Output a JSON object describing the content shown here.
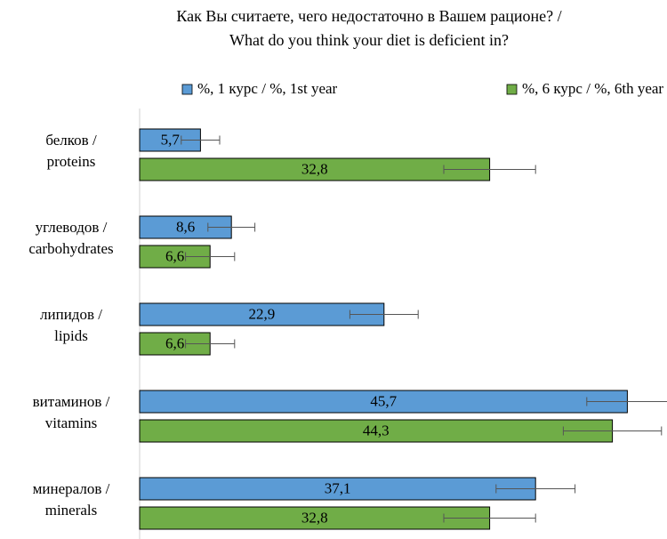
{
  "chart_data": {
    "type": "hbar",
    "title": "Как Вы считаете, чего недостаточно в Вашем рационе? /\nWhat do you think your diet is deficient in?",
    "categories": [
      "белков /\nproteins",
      "углеводов /\ncarbohydrates",
      "липидов /\nlipids",
      "витаминов /\nvitamins",
      "минералов /\nminerals"
    ],
    "series": [
      {
        "name": "%, 1 курс / %, 1st year",
        "color": "#5b9bd5",
        "values": [
          5.7,
          8.6,
          22.9,
          45.7,
          37.1
        ],
        "value_labels": [
          "5,7",
          "8,6",
          "22,9",
          "45,7",
          "37,1"
        ],
        "errors": [
          1.8,
          2.2,
          3.2,
          3.8,
          3.7
        ]
      },
      {
        "name": "%, 6 курс / %, 6th year",
        "color": "#70ad47",
        "values": [
          32.8,
          6.6,
          6.6,
          44.3,
          32.8
        ],
        "value_labels": [
          "32,8",
          "6,6",
          "6,6",
          "44,3",
          "32,8"
        ],
        "errors": [
          4.3,
          2.3,
          2.3,
          4.6,
          4.3
        ]
      }
    ],
    "xlim": [
      0,
      50
    ]
  }
}
